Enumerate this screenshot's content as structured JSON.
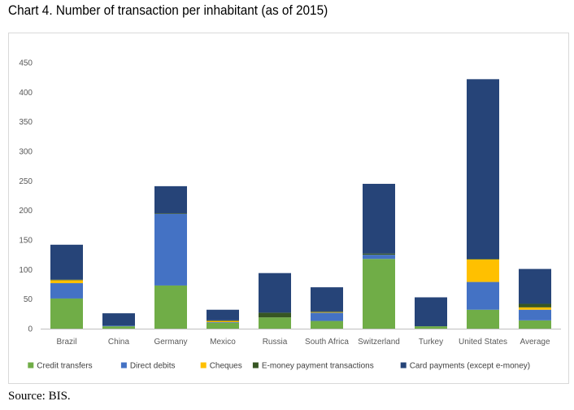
{
  "title": "Chart 4. Number of transaction per inhabitant (as of 2015)",
  "source": "Source: BIS.",
  "chart_data": {
    "type": "bar",
    "stacked": true,
    "categories": [
      "Brazil",
      "China",
      "Germany",
      "Mexico",
      "Russia",
      "South Africa",
      "Switzerland",
      "Turkey",
      "United States",
      "Average"
    ],
    "series": [
      {
        "name": "Credit transfers",
        "color": "#70ad47",
        "values": [
          51,
          4,
          73,
          10,
          19,
          13,
          118,
          4,
          32,
          14
        ]
      },
      {
        "name": "Direct debits",
        "color": "#4472c4",
        "values": [
          26,
          1,
          121,
          1,
          0,
          14,
          7,
          0,
          47,
          18
        ]
      },
      {
        "name": "Cheques",
        "color": "#ffc000",
        "values": [
          5,
          0,
          0,
          2,
          0,
          1,
          0,
          0,
          38,
          4
        ]
      },
      {
        "name": "E-money payment transactions",
        "color": "#375623",
        "values": [
          1,
          0,
          1,
          1,
          8,
          1,
          2,
          0,
          1,
          6
        ]
      },
      {
        "name": "Card payments (except e-money)",
        "color": "#264478",
        "values": [
          59,
          21,
          46,
          18,
          67,
          41,
          118,
          49,
          304,
          59
        ]
      }
    ],
    "ylim": [
      0,
      450
    ],
    "yticks": [
      0,
      50,
      100,
      150,
      200,
      250,
      300,
      350,
      400,
      450
    ],
    "grid": false,
    "legend_position": "bottom",
    "xlabel": "",
    "ylabel": ""
  }
}
